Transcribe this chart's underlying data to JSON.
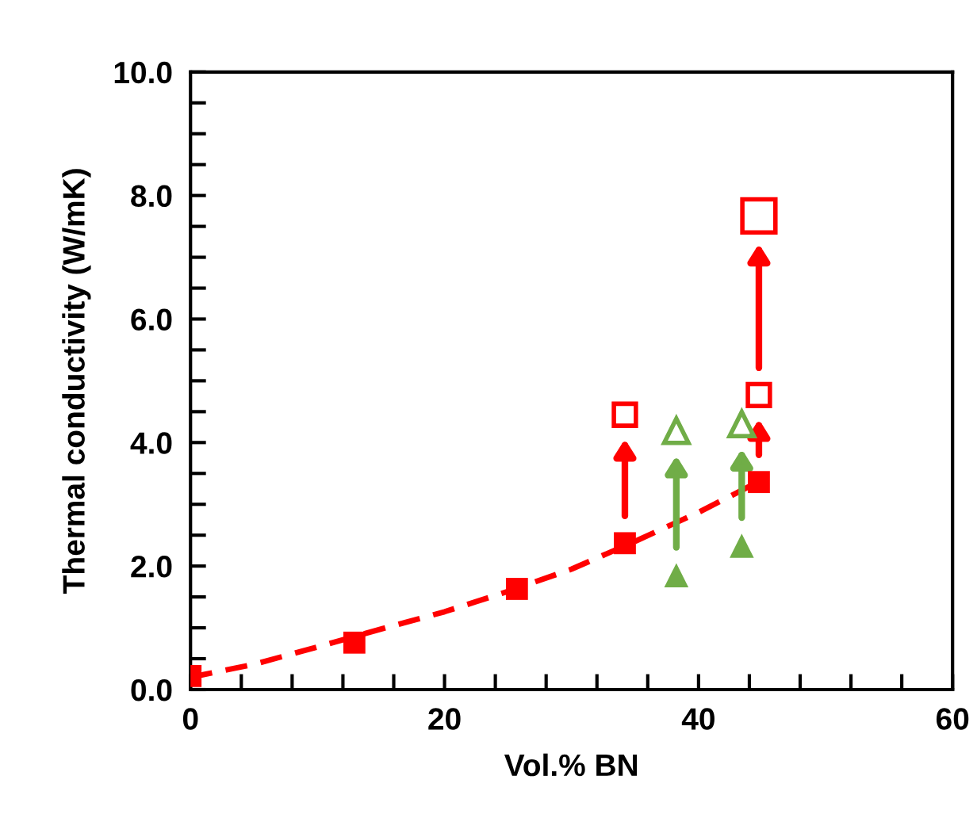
{
  "chart_data": {
    "type": "scatter",
    "xlabel": "Vol.% BN",
    "ylabel": "Thermal conductivity (W/mK)",
    "xlim": [
      0,
      60
    ],
    "ylim": [
      0,
      10
    ],
    "xticks": [
      0,
      {
        "value": 4,
        "label": null
      },
      {
        "value": 8,
        "label": null
      },
      {
        "value": 12,
        "label": null
      },
      {
        "value": 16,
        "label": null
      },
      20,
      {
        "value": 24,
        "label": null
      },
      {
        "value": 28,
        "label": null
      },
      {
        "value": 32,
        "label": null
      },
      {
        "value": 36,
        "label": null
      },
      40,
      {
        "value": 44,
        "label": null
      },
      {
        "value": 48,
        "label": null
      },
      {
        "value": 52,
        "label": null
      },
      {
        "value": 56,
        "label": null
      },
      60
    ],
    "yticks": [
      {
        "value": 0,
        "label": "0.0"
      },
      {
        "value": 0.5,
        "label": null
      },
      {
        "value": 1,
        "label": null
      },
      {
        "value": 1.5,
        "label": null
      },
      {
        "value": 2,
        "label": "2.0"
      },
      {
        "value": 2.5,
        "label": null
      },
      {
        "value": 3,
        "label": null
      },
      {
        "value": 3.5,
        "label": null
      },
      {
        "value": 4,
        "label": "4.0"
      },
      {
        "value": 4.5,
        "label": null
      },
      {
        "value": 5,
        "label": null
      },
      {
        "value": 5.5,
        "label": null
      },
      {
        "value": 6,
        "label": "6.0"
      },
      {
        "value": 6.5,
        "label": null
      },
      {
        "value": 7,
        "label": null
      },
      {
        "value": 7.5,
        "label": null
      },
      {
        "value": 8,
        "label": "8.0"
      },
      {
        "value": 8.5,
        "label": null
      },
      {
        "value": 9,
        "label": null
      },
      {
        "value": 9.5,
        "label": null
      },
      {
        "value": 10,
        "label": "10.0"
      }
    ],
    "grid": false,
    "legend": false,
    "series": [
      {
        "type": "line",
        "color": "#ff0000",
        "line_style": "dashed",
        "marker": "none",
        "x": [
          0,
          5,
          10,
          15,
          20,
          25,
          30,
          35,
          40,
          44
        ],
        "values": [
          0.2,
          0.41,
          0.69,
          0.98,
          1.26,
          1.59,
          1.95,
          2.4,
          2.87,
          3.29
        ]
      },
      {
        "color": "#ff0000",
        "marker": "square",
        "x": [
          0,
          12.9,
          25.7,
          34.2,
          44.75
        ],
        "values": [
          0.22,
          0.76,
          1.63,
          2.37,
          3.36
        ]
      },
      {
        "color": "#ff0000",
        "marker": "square",
        "x": [
          34.2,
          44.75
        ],
        "values": [
          4.45,
          4.77
        ]
      },
      {
        "color": "#ff0000",
        "marker": "square",
        "x": [
          44.75
        ],
        "values": [
          7.67
        ]
      },
      {
        "color": "#70ad47",
        "marker": "triangle",
        "x": [
          38.25,
          43.4
        ],
        "values": [
          1.85,
          2.33
        ]
      },
      {
        "color": "#70ad47",
        "marker": "triangle",
        "x": [
          38.25,
          43.4
        ],
        "values": [
          4.19,
          4.3
        ]
      }
    ]
  }
}
